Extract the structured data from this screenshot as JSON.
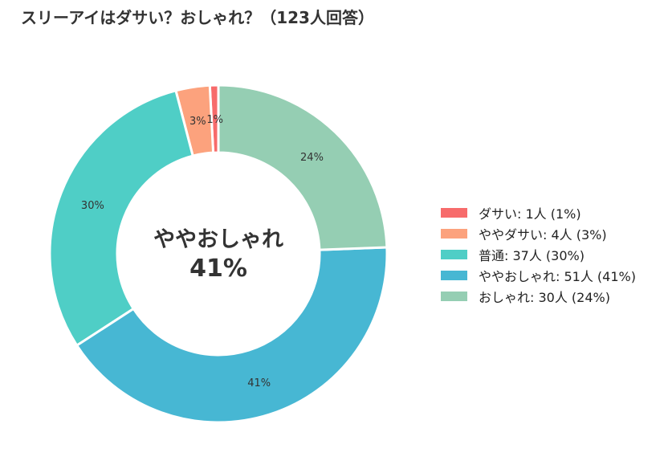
{
  "chart_data": {
    "type": "pie",
    "variant": "donut",
    "title": "スリーアイはダサい？おしゃれ？（123人回答）",
    "center_label": {
      "line1": "ややおしゃれ",
      "line2": "41%"
    },
    "legend_placement": "right",
    "categories": [
      "ダサい",
      "ややダサい",
      "普通",
      "ややおしゃれ",
      "おしゃれ"
    ],
    "values": [
      1,
      4,
      37,
      51,
      30
    ],
    "percent_labels": [
      "1%",
      "3%",
      "30%",
      "41%",
      "24%"
    ],
    "colors": [
      "#f76b6b",
      "#fca27d",
      "#4fcec6",
      "#47b7d3",
      "#95ceb3"
    ],
    "legend": [
      "ダサい:  1人 (1%)",
      "ややダサい:  4人 (3%)",
      "普通:  37人 (30%)",
      "ややおしゃれ:  51人 (41%)",
      "おしゃれ:  30人 (24%)"
    ]
  }
}
